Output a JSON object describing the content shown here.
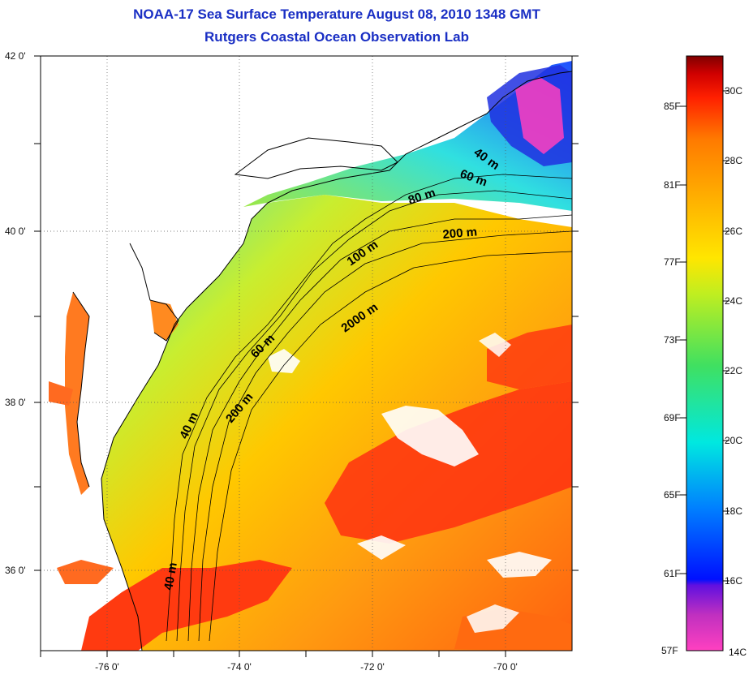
{
  "title_line1": "NOAA-17 Sea Surface Temperature August 08, 2010 1348 GMT",
  "title_line2": "Rutgers Coastal Ocean Observation Lab",
  "lat_labels": [
    "42 0'",
    "40 0'",
    "38 0'",
    "36 0'"
  ],
  "lon_labels": [
    "-76 0'",
    "-74 0'",
    "-72 0'",
    "-70 0'"
  ],
  "isobath_labels": [
    "40 m",
    "60 m",
    "80 m",
    "200 m",
    "100 m",
    "2000 m",
    "60 m",
    "200 m",
    "40 m",
    "40 m"
  ],
  "colorbar": {
    "fahrenheit": [
      "85F",
      "81F",
      "77F",
      "73F",
      "69F",
      "65F",
      "61F",
      "57F"
    ],
    "celsius": [
      "30C",
      "28C",
      "26C",
      "24C",
      "22C",
      "20C",
      "18C",
      "16C",
      "14C"
    ],
    "colors": [
      "#ff40c0",
      "#9020c0",
      "#0010ff",
      "#00a0ff",
      "#00e8e0",
      "#40e060",
      "#c0ee20",
      "#ffe600",
      "#ffb000",
      "#ff7a00",
      "#ff2000",
      "#e00000",
      "#800000"
    ]
  },
  "grid": "dotted"
}
